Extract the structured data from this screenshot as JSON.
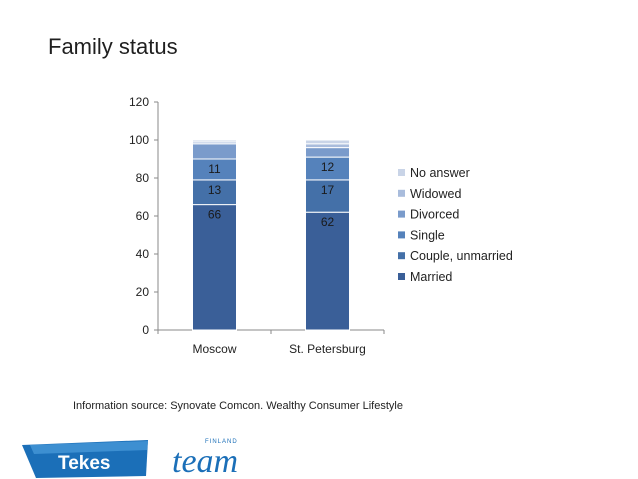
{
  "title": "Family status",
  "source_note": "Information source: Synovate Comcon. Wealthy Consumer Lifestyle",
  "logos": {
    "tekes": "Tekes",
    "team": "team",
    "team_super": "FINLAND"
  },
  "chart_data": {
    "type": "bar",
    "stacked": true,
    "categories": [
      "Moscow",
      "St. Petersburg"
    ],
    "ylim": [
      0,
      120
    ],
    "yticks": [
      0,
      20,
      40,
      60,
      80,
      100,
      120
    ],
    "legend_position": "right",
    "grid": false,
    "series": [
      {
        "name": "Married",
        "values": [
          66,
          62
        ],
        "color": "#3a5f98",
        "show_labels": true
      },
      {
        "name": "Couple, unmarried",
        "values": [
          13,
          17
        ],
        "color": "#4470a8",
        "show_labels": true
      },
      {
        "name": "Single",
        "values": [
          11,
          12
        ],
        "color": "#5582bb",
        "show_labels": true
      },
      {
        "name": "Divorced",
        "values": [
          8,
          5
        ],
        "color": "#7a9bcb",
        "show_labels": false
      },
      {
        "name": "Widowed",
        "values": [
          1,
          2
        ],
        "color": "#a9bcdc",
        "show_labels": false
      },
      {
        "name": "No answer",
        "values": [
          1,
          2
        ],
        "color": "#c9d4e7",
        "show_labels": false
      }
    ]
  }
}
